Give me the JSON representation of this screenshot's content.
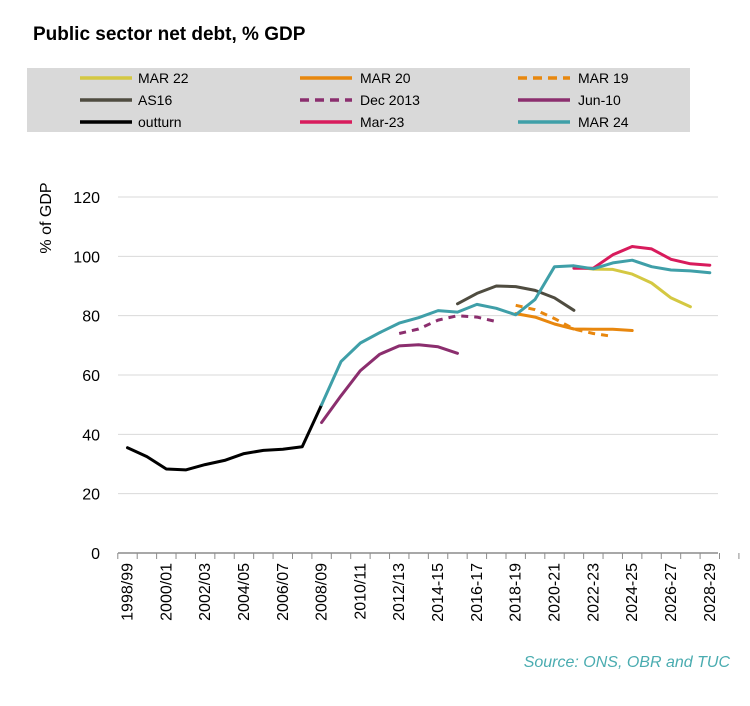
{
  "chart_data": {
    "type": "line",
    "title": "Public sector net debt, % GDP",
    "ylabel": "% of GDP",
    "xlabel": "",
    "ylim": [
      0,
      120
    ],
    "yticks": [
      0,
      20,
      40,
      60,
      80,
      100,
      120
    ],
    "xtick_labels": [
      "1998/99",
      "2000/01",
      "2002/03",
      "2004/05",
      "2006/07",
      "2008/09",
      "2010/11",
      "2012/13",
      "2014-15",
      "2016-17",
      "2018-19",
      "2020-21",
      "2022-23",
      "2024-25",
      "2026-27",
      "2028-29"
    ],
    "x_start_year": 1998,
    "x_end_year": 2029,
    "grid": "horizontal",
    "legend_position": "top",
    "source": "Source: ONS, OBR and TUC",
    "series": [
      {
        "name": "MAR 22",
        "color": "#d4c842",
        "dash": "solid",
        "start": 2021,
        "values": [
          96.5,
          95.7,
          95.6,
          94.0,
          91.0,
          86.0,
          83.0
        ]
      },
      {
        "name": "MAR 20",
        "color": "#e8870e",
        "dash": "solid",
        "start": 2018,
        "values": [
          80.7,
          79.5,
          77.2,
          75.5,
          75.4,
          75.4,
          75.0
        ]
      },
      {
        "name": "MAR 19",
        "color": "#e8870e",
        "dash": "dashed",
        "start": 2018,
        "values": [
          83.5,
          82.0,
          79.0,
          75.5,
          74.0,
          73.0
        ]
      },
      {
        "name": "AS16",
        "color": "#4f4c40",
        "dash": "solid",
        "start": 2015,
        "values": [
          84.0,
          87.5,
          90.0,
          89.8,
          88.5,
          86.0,
          81.8
        ]
      },
      {
        "name": "Dec 2013",
        "color": "#8b2e6e",
        "dash": "dashed",
        "start": 2012,
        "values": [
          74.0,
          75.5,
          78.5,
          80.0,
          79.5,
          78.0
        ]
      },
      {
        "name": "Jun-10",
        "color": "#8b2e6e",
        "dash": "solid",
        "start": 2008,
        "values": [
          44.0,
          53.0,
          61.5,
          67.0,
          69.8,
          70.2,
          69.5,
          67.3
        ]
      },
      {
        "name": "outturn",
        "color": "#000000",
        "dash": "solid",
        "start": 1998,
        "values": [
          35.5,
          32.5,
          28.3,
          28.0,
          29.8,
          31.2,
          33.5,
          34.6,
          35.0,
          35.8,
          50.0
        ]
      },
      {
        "name": "Mar-23",
        "color": "#d81b5c",
        "dash": "solid",
        "start": 2021,
        "values": [
          96.0,
          96.0,
          100.5,
          103.3,
          102.5,
          99.0,
          97.5,
          97.0
        ]
      },
      {
        "name": "MAR 24",
        "color": "#3f9fa8",
        "dash": "solid",
        "start": 2008,
        "values": [
          50.0,
          64.5,
          70.8,
          74.3,
          77.5,
          79.3,
          81.7,
          81.2,
          83.8,
          82.5,
          80.3,
          85.5,
          96.5,
          96.8,
          95.8,
          97.8,
          98.7,
          96.5,
          95.4,
          95.1,
          94.5
        ]
      }
    ]
  }
}
